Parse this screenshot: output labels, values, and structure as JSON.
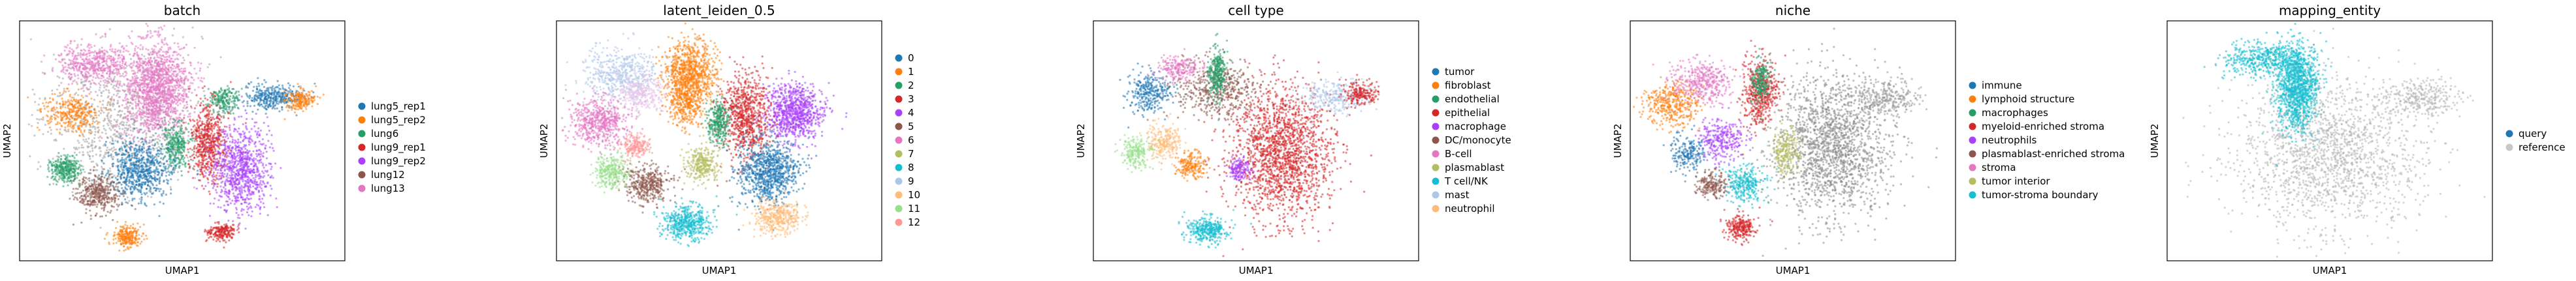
{
  "colors": {
    "tab10": [
      "#1f77b4",
      "#ff7f0e",
      "#279e68",
      "#d62728",
      "#aa40fc",
      "#8c564b",
      "#e377c2",
      "#b5bd61",
      "#17becf",
      "#aec7e8",
      "#ffbb78",
      "#98df8a",
      "#ff9896"
    ],
    "unassigned": "#c8c8c8"
  },
  "chart_data": [
    {
      "type": "scatter",
      "title": "batch",
      "xlabel": "UMAP1",
      "ylabel": "UMAP2",
      "legend": {
        "placement": "right",
        "entries": [
          "lung5_rep1",
          "lung5_rep2",
          "lung6",
          "lung9_rep1",
          "lung9_rep2",
          "lung12",
          "lung13"
        ]
      }
    },
    {
      "type": "scatter",
      "title": "latent_leiden_0.5",
      "xlabel": "UMAP1",
      "ylabel": "UMAP2",
      "legend": {
        "placement": "right",
        "entries": [
          "0",
          "1",
          "2",
          "3",
          "4",
          "5",
          "6",
          "7",
          "8",
          "9",
          "10",
          "11",
          "12"
        ]
      }
    },
    {
      "type": "scatter",
      "title": "cell type",
      "xlabel": "UMAP1",
      "ylabel": "UMAP2",
      "legend": {
        "placement": "right",
        "entries": [
          "tumor",
          "fibroblast",
          "endothelial",
          "epithelial",
          "macrophage",
          "DC/monocyte",
          "B-cell",
          "plasmablast",
          "T cell/NK",
          "mast",
          "neutrophil"
        ]
      }
    },
    {
      "type": "scatter",
      "title": "niche",
      "xlabel": "UMAP1",
      "ylabel": "UMAP2",
      "legend": {
        "placement": "right",
        "entries": [
          "immune",
          "lymphoid structure",
          "macrophages",
          "myeloid-enriched stroma",
          "neutrophils",
          "plasmablast-enriched stroma",
          "stroma",
          "tumor interior",
          "tumor-stroma boundary"
        ]
      }
    },
    {
      "type": "scatter",
      "title": "mapping_entity",
      "xlabel": "UMAP1",
      "ylabel": "UMAP2",
      "legend": {
        "placement": "right",
        "entries": [
          "query",
          "reference"
        ]
      }
    }
  ]
}
